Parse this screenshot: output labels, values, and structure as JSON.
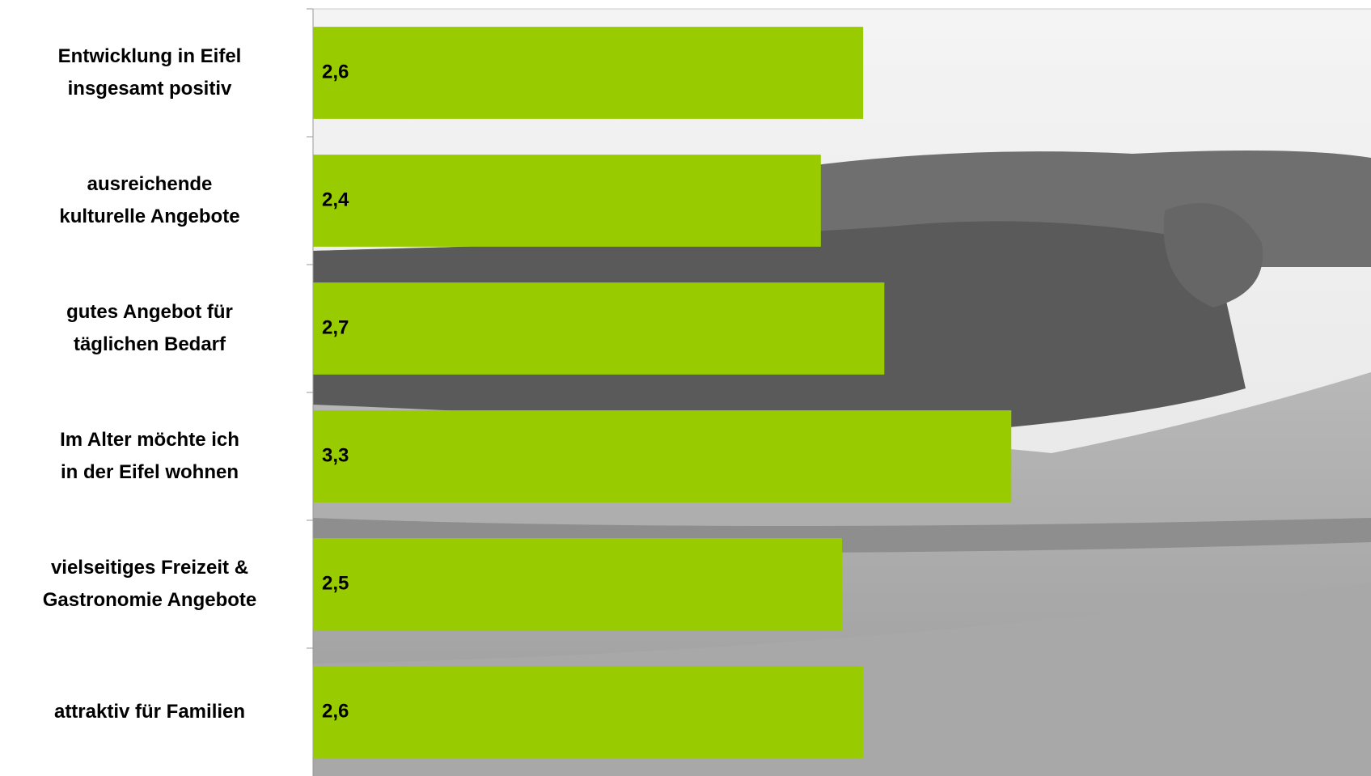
{
  "chart_data": {
    "type": "bar",
    "orientation": "horizontal",
    "categories": [
      "Entwicklung in Eifel\ninsgesamt positiv",
      "ausreichende\nkulturelle Angebote",
      "gutes Angebot für\ntäglichen Bedarf",
      "Im Alter möchte ich\nin der Eifel wohnen",
      "vielseitiges Freizeit &\nGastronomie Angebote",
      "attraktiv für Familien"
    ],
    "values": [
      2.6,
      2.4,
      2.7,
      3.3,
      2.5,
      2.6
    ],
    "value_labels": [
      "2,6",
      "2,4",
      "2,7",
      "3,3",
      "2,5",
      "2,6"
    ],
    "color": "#99cc00",
    "xlim": [
      0,
      5
    ]
  }
}
